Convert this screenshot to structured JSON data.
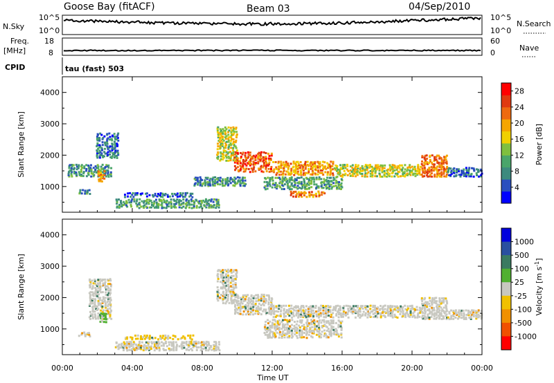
{
  "header": {
    "station": "Goose Bay (fitACF)",
    "beam": "Beam 03",
    "date": "04/Sep/2010"
  },
  "status_panels": {
    "noise_left_label": "N.Sky",
    "noise_right_label": "N.Search",
    "noise_left_ticks": [
      "10^5",
      "10^0"
    ],
    "noise_right_ticks": [
      "10^5",
      "10^0"
    ],
    "freq_label_line1": "Freq.",
    "freq_label_line2": "[MHz]",
    "freq_ticks": [
      "18",
      "8"
    ],
    "nave_label": "Nave",
    "nave_ticks": [
      "60",
      "0"
    ],
    "cpid_label": "CPID",
    "cpid_value": "tau (fast) 503"
  },
  "chart_data": [
    {
      "type": "heatmap",
      "name": "power",
      "ylabel": "Slant Range [km]",
      "ylim": [
        180,
        4500
      ],
      "yticks": [
        1000,
        2000,
        3000,
        4000
      ],
      "colorbar_label": "Power [dB]",
      "colorbar_ticks": [
        "4",
        "8",
        "12",
        "16",
        "20",
        "24",
        "28"
      ],
      "colorbar_range": [
        0,
        30
      ],
      "colors": [
        "#0000ff",
        "#2a4fbf",
        "#3d8a7e",
        "#4aa56a",
        "#7fbf3f",
        "#f0d000",
        "#f5a500",
        "#ee6a10",
        "#e03a10",
        "#ff0000"
      ],
      "regions": [
        {
          "t": [
            0.9,
            1.6
          ],
          "r": [
            750,
            900
          ],
          "level": 8
        },
        {
          "t": [
            0.3,
            2.8
          ],
          "r": [
            1300,
            1700
          ],
          "level": 9
        },
        {
          "t": [
            1.9,
            3.2
          ],
          "r": [
            1900,
            2700
          ],
          "level": 7
        },
        {
          "t": [
            2.0,
            2.4
          ],
          "r": [
            1150,
            1500
          ],
          "level": 20
        },
        {
          "t": [
            3.5,
            7.5
          ],
          "r": [
            650,
            800
          ],
          "level": 6
        },
        {
          "t": [
            3.0,
            9.0
          ],
          "r": [
            300,
            600
          ],
          "level": 10
        },
        {
          "t": [
            7.5,
            10.5
          ],
          "r": [
            1000,
            1300
          ],
          "level": 8
        },
        {
          "t": [
            8.8,
            10.0
          ],
          "r": [
            1800,
            2900
          ],
          "level": 16
        },
        {
          "t": [
            9.8,
            12.0
          ],
          "r": [
            1450,
            2100
          ],
          "level": 24
        },
        {
          "t": [
            12.0,
            15.5
          ],
          "r": [
            1350,
            1800
          ],
          "level": 20
        },
        {
          "t": [
            11.5,
            16.0
          ],
          "r": [
            900,
            1300
          ],
          "level": 10
        },
        {
          "t": [
            13.0,
            15.0
          ],
          "r": [
            650,
            850
          ],
          "level": 22
        },
        {
          "t": [
            15.5,
            20.5
          ],
          "r": [
            1300,
            1700
          ],
          "level": 16
        },
        {
          "t": [
            20.5,
            22.0
          ],
          "r": [
            1300,
            2000
          ],
          "level": 22
        },
        {
          "t": [
            22.0,
            24.0
          ],
          "r": [
            1300,
            1600
          ],
          "level": 6
        }
      ]
    },
    {
      "type": "heatmap",
      "name": "velocity",
      "xlabel": "Time UT",
      "ylabel": "Slant Range [km]",
      "ylim": [
        180,
        4500
      ],
      "yticks": [
        1000,
        2000,
        3000,
        4000
      ],
      "xlim": [
        0,
        24
      ],
      "xtick_values": [
        0,
        4,
        8,
        12,
        16,
        20,
        24
      ],
      "xticks": [
        "00:00",
        "04:00",
        "08:00",
        "12:00",
        "16:00",
        "20:00",
        "00:00"
      ],
      "colorbar_label": "Velocity [m s^-1]",
      "colorbar_ticks": [
        "1000",
        "500",
        "100",
        "25",
        "-25",
        "-100",
        "-500",
        "-1000"
      ],
      "colors": [
        "#0000dd",
        "#2a4fa0",
        "#3a7a60",
        "#50b030",
        "#c8c8c0",
        "#f0c000",
        "#f09000",
        "#f05000",
        "#ff0000"
      ],
      "regions": [
        {
          "t": [
            0.9,
            1.6
          ],
          "r": [
            750,
            900
          ],
          "v": 0
        },
        {
          "t": [
            1.5,
            2.8
          ],
          "r": [
            1300,
            2600
          ],
          "v": 0
        },
        {
          "t": [
            2.1,
            2.5
          ],
          "r": [
            1200,
            1500
          ],
          "v": 150
        },
        {
          "t": [
            3.5,
            7.5
          ],
          "r": [
            650,
            800
          ],
          "v": -150
        },
        {
          "t": [
            3.0,
            9.0
          ],
          "r": [
            300,
            600
          ],
          "v": 0
        },
        {
          "t": [
            8.8,
            10.0
          ],
          "r": [
            1800,
            2900
          ],
          "v": 0
        },
        {
          "t": [
            9.8,
            12.0
          ],
          "r": [
            1450,
            2100
          ],
          "v": 0
        },
        {
          "t": [
            12.0,
            20.5
          ],
          "r": [
            1350,
            1750
          ],
          "v": 0
        },
        {
          "t": [
            11.5,
            16.0
          ],
          "r": [
            700,
            1300
          ],
          "v": 0
        },
        {
          "t": [
            20.5,
            22.0
          ],
          "r": [
            1300,
            2000
          ],
          "v": 0
        },
        {
          "t": [
            22.0,
            24.0
          ],
          "r": [
            1300,
            1600
          ],
          "v": 0
        }
      ]
    }
  ]
}
